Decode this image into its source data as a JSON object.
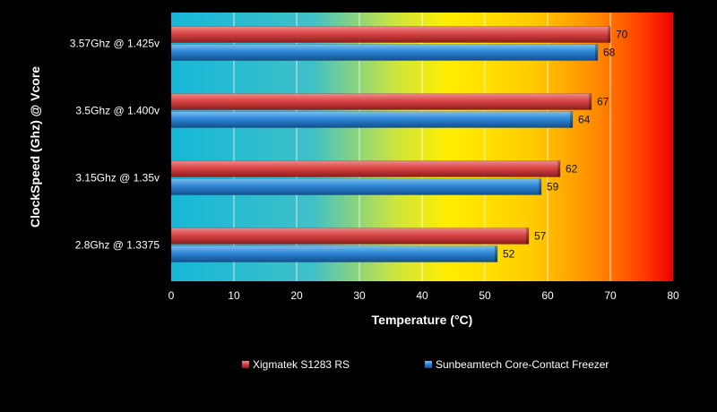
{
  "chart_data": {
    "type": "bar",
    "orientation": "horizontal",
    "title": "",
    "xlabel": "Temperature (°C)",
    "ylabel": "ClockSpeed (Ghz) @ Vcore",
    "xlim": [
      0,
      80
    ],
    "xticks": [
      0,
      10,
      20,
      30,
      40,
      50,
      60,
      70,
      80
    ],
    "grid": true,
    "legend_position": "bottom",
    "categories": [
      "3.57Ghz @ 1.425v",
      "3.5Ghz @ 1.400v",
      "3.15Ghz @ 1.35v",
      "2.8Ghz @ 1.3375"
    ],
    "series": [
      {
        "name": "Xigmatek S1283 RS",
        "color": "#d84545",
        "values": [
          70,
          67,
          62,
          57
        ]
      },
      {
        "name": "Sunbeamtech Core-Contact Freezer",
        "color": "#2e86d6",
        "values": [
          68,
          64,
          59,
          52
        ]
      }
    ]
  }
}
